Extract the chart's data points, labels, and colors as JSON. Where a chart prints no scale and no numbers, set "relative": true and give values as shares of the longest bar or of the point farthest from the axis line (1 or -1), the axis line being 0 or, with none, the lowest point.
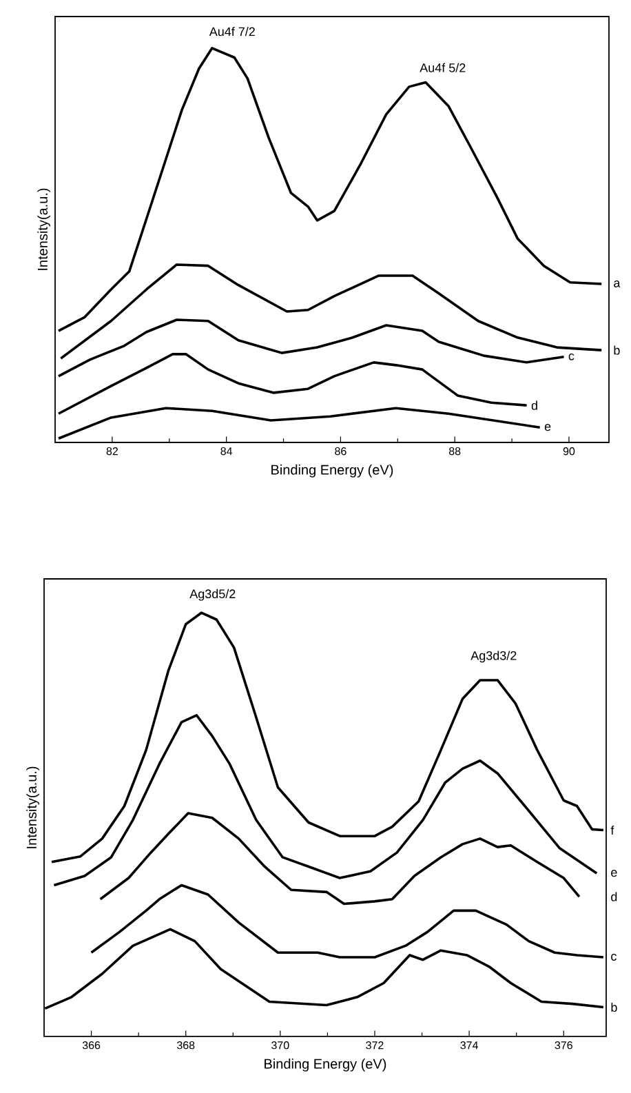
{
  "chart_data": [
    {
      "type": "line",
      "xlabel": "Binding Energy (eV)",
      "ylabel": "Intensity(a.u.)",
      "relative": true,
      "xlim": [
        81,
        90.7
      ],
      "xticks": [
        82,
        84,
        86,
        88,
        90
      ],
      "annotations": [
        "Au4f 7/2",
        "Au4f 5/2"
      ],
      "series": [
        {
          "name": "a",
          "color": "#000000",
          "x": [
            81.06,
            81.52,
            81.98,
            82.3,
            82.67,
            83.22,
            83.52,
            83.75,
            84.14,
            84.37,
            84.74,
            85.13,
            85.43,
            85.59,
            85.89,
            86.34,
            86.8,
            87.2,
            87.49,
            87.89,
            88.28,
            88.74,
            89.1,
            89.56,
            90.02,
            90.57
          ],
          "values": [
            0.283,
            0.318,
            0.388,
            0.434,
            0.598,
            0.843,
            0.948,
            1.0,
            0.976,
            0.923,
            0.773,
            0.633,
            0.598,
            0.563,
            0.587,
            0.703,
            0.832,
            0.902,
            0.913,
            0.853,
            0.748,
            0.622,
            0.517,
            0.448,
            0.406,
            0.402
          ]
        },
        {
          "name": "b",
          "color": "#000000",
          "x": [
            81.1,
            81.98,
            82.6,
            83.13,
            83.68,
            84.21,
            85.06,
            85.43,
            85.89,
            86.67,
            87.26,
            87.72,
            88.41,
            89.1,
            89.79,
            90.57
          ],
          "values": [
            0.213,
            0.308,
            0.388,
            0.451,
            0.448,
            0.399,
            0.332,
            0.336,
            0.371,
            0.423,
            0.423,
            0.378,
            0.308,
            0.266,
            0.241,
            0.234
          ]
        },
        {
          "name": "c",
          "color": "#000000",
          "x": [
            81.06,
            81.61,
            82.21,
            82.6,
            83.13,
            83.68,
            84.21,
            84.97,
            85.59,
            86.21,
            86.8,
            87.43,
            87.72,
            88.51,
            89.26,
            89.91
          ],
          "values": [
            0.168,
            0.21,
            0.245,
            0.28,
            0.311,
            0.308,
            0.259,
            0.227,
            0.241,
            0.266,
            0.297,
            0.283,
            0.255,
            0.22,
            0.203,
            0.217
          ]
        },
        {
          "name": "d",
          "color": "#000000",
          "x": [
            81.06,
            81.98,
            82.6,
            83.06,
            83.29,
            83.68,
            84.21,
            84.83,
            85.43,
            85.89,
            86.58,
            86.97,
            87.43,
            88.05,
            88.64,
            89.26
          ],
          "values": [
            0.073,
            0.143,
            0.189,
            0.224,
            0.224,
            0.185,
            0.15,
            0.126,
            0.136,
            0.168,
            0.203,
            0.196,
            0.185,
            0.119,
            0.101,
            0.094
          ]
        },
        {
          "name": "e",
          "color": "#000000",
          "x": [
            81.06,
            81.98,
            82.94,
            83.75,
            84.78,
            85.82,
            86.97,
            87.89,
            89.49
          ],
          "values": [
            0.01,
            0.063,
            0.087,
            0.08,
            0.056,
            0.066,
            0.087,
            0.073,
            0.038
          ]
        }
      ]
    },
    {
      "type": "line",
      "xlabel": "Binding Energy (eV)",
      "ylabel": "Intensity(a.u.)",
      "relative": true,
      "xlim": [
        365,
        376.9
      ],
      "xticks": [
        366,
        368,
        370,
        372,
        374,
        376
      ],
      "annotations": [
        "Ag3d5/2",
        "Ag3d3/2"
      ],
      "series": [
        {
          "name": "f",
          "color": "#000000",
          "x": [
            365.16,
            365.77,
            366.23,
            366.7,
            367.16,
            367.63,
            368.0,
            368.33,
            368.65,
            369.02,
            369.49,
            369.95,
            370.6,
            371.26,
            372.0,
            372.37,
            372.93,
            373.4,
            373.86,
            374.23,
            374.6,
            374.98,
            375.44,
            376.0,
            376.28,
            376.6,
            376.84
          ],
          "values": [
            0.412,
            0.425,
            0.467,
            0.544,
            0.676,
            0.863,
            0.973,
            1.0,
            0.984,
            0.918,
            0.753,
            0.588,
            0.505,
            0.473,
            0.473,
            0.495,
            0.555,
            0.676,
            0.797,
            0.841,
            0.841,
            0.786,
            0.676,
            0.557,
            0.544,
            0.489,
            0.487
          ]
        },
        {
          "name": "e",
          "color": "#000000",
          "x": [
            365.21,
            365.86,
            366.42,
            366.88,
            367.44,
            367.91,
            368.23,
            368.56,
            368.93,
            369.49,
            370.05,
            370.6,
            371.26,
            371.91,
            372.47,
            373.02,
            373.49,
            373.86,
            374.23,
            374.6,
            375.26,
            375.91,
            376.7
          ],
          "values": [
            0.357,
            0.379,
            0.423,
            0.511,
            0.643,
            0.742,
            0.758,
            0.709,
            0.643,
            0.511,
            0.423,
            0.401,
            0.374,
            0.39,
            0.434,
            0.511,
            0.599,
            0.632,
            0.651,
            0.621,
            0.533,
            0.445,
            0.385
          ]
        },
        {
          "name": "d",
          "color": "#000000",
          "x": [
            366.19,
            366.79,
            367.26,
            367.63,
            368.05,
            368.56,
            369.12,
            369.67,
            370.23,
            370.98,
            371.35,
            372.0,
            372.37,
            372.84,
            373.4,
            373.86,
            374.23,
            374.6,
            374.88,
            375.44,
            376.0,
            376.33
          ],
          "values": [
            0.324,
            0.374,
            0.434,
            0.478,
            0.527,
            0.516,
            0.467,
            0.401,
            0.346,
            0.341,
            0.313,
            0.319,
            0.324,
            0.379,
            0.423,
            0.454,
            0.467,
            0.447,
            0.451,
            0.412,
            0.374,
            0.33
          ]
        },
        {
          "name": "c",
          "color": "#000000",
          "x": [
            366.0,
            366.6,
            367.16,
            367.44,
            367.91,
            368.47,
            369.12,
            369.95,
            370.79,
            371.26,
            372.0,
            372.65,
            373.12,
            373.67,
            374.14,
            374.79,
            375.26,
            375.81,
            376.28,
            376.84
          ],
          "values": [
            0.198,
            0.247,
            0.297,
            0.324,
            0.357,
            0.335,
            0.269,
            0.198,
            0.198,
            0.187,
            0.187,
            0.214,
            0.247,
            0.297,
            0.297,
            0.264,
            0.225,
            0.198,
            0.192,
            0.187
          ]
        },
        {
          "name": "b",
          "color": "#000000",
          "x": [
            365.02,
            365.58,
            366.23,
            366.88,
            367.67,
            368.19,
            368.74,
            369.77,
            370.98,
            371.63,
            372.19,
            372.74,
            373.02,
            373.4,
            373.95,
            374.42,
            374.88,
            375.53,
            376.19,
            376.84
          ],
          "values": [
            0.066,
            0.093,
            0.148,
            0.214,
            0.253,
            0.225,
            0.159,
            0.082,
            0.074,
            0.093,
            0.126,
            0.192,
            0.181,
            0.203,
            0.192,
            0.165,
            0.126,
            0.082,
            0.077,
            0.069
          ]
        }
      ]
    }
  ]
}
